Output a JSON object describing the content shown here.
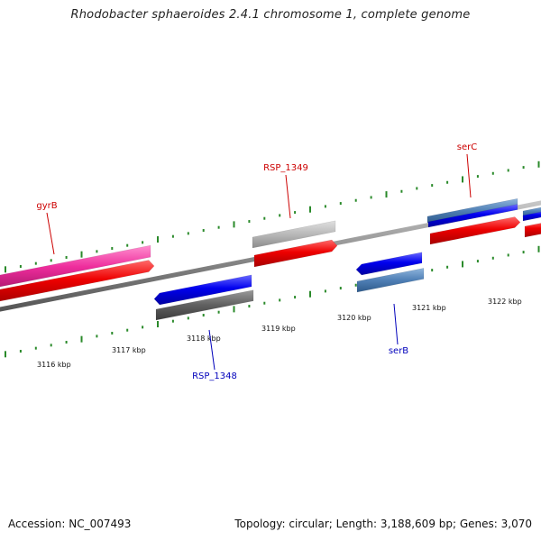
{
  "title": "Rhodobacter sphaeroides 2.4.1 chromosome 1, complete genome",
  "footer": {
    "accession": "Accession: NC_007493",
    "summary": "Topology: circular; Length: 3,188,609 bp; Genes: 3,070"
  },
  "colors": {
    "backbone": "#8a8a8a",
    "tick": "#2a8a2a",
    "forward_cds": "#ee0000",
    "reverse_cds": "#0000ee",
    "magenta_feature": "#ee2d9c",
    "grey_light": "#b8b8b8",
    "grey_dark": "#606060",
    "steel_blue": "#4f7fb5",
    "label_red": "#cc0000",
    "label_blue": "#0000bb"
  },
  "ticks": [
    {
      "label": "3116 kbp"
    },
    {
      "label": "3117 kbp"
    },
    {
      "label": "3118 kbp"
    },
    {
      "label": "3119 kbp"
    },
    {
      "label": "3120 kbp"
    },
    {
      "label": "3121 kbp"
    },
    {
      "label": "3122 kbp"
    }
  ],
  "genes": [
    {
      "name": "gyrB",
      "strand": "+"
    },
    {
      "name": "RSP_1348",
      "strand": "-"
    },
    {
      "name": "RSP_1349",
      "strand": "+"
    },
    {
      "name": "serB",
      "strand": "-"
    },
    {
      "name": "serC",
      "strand": "+"
    }
  ]
}
